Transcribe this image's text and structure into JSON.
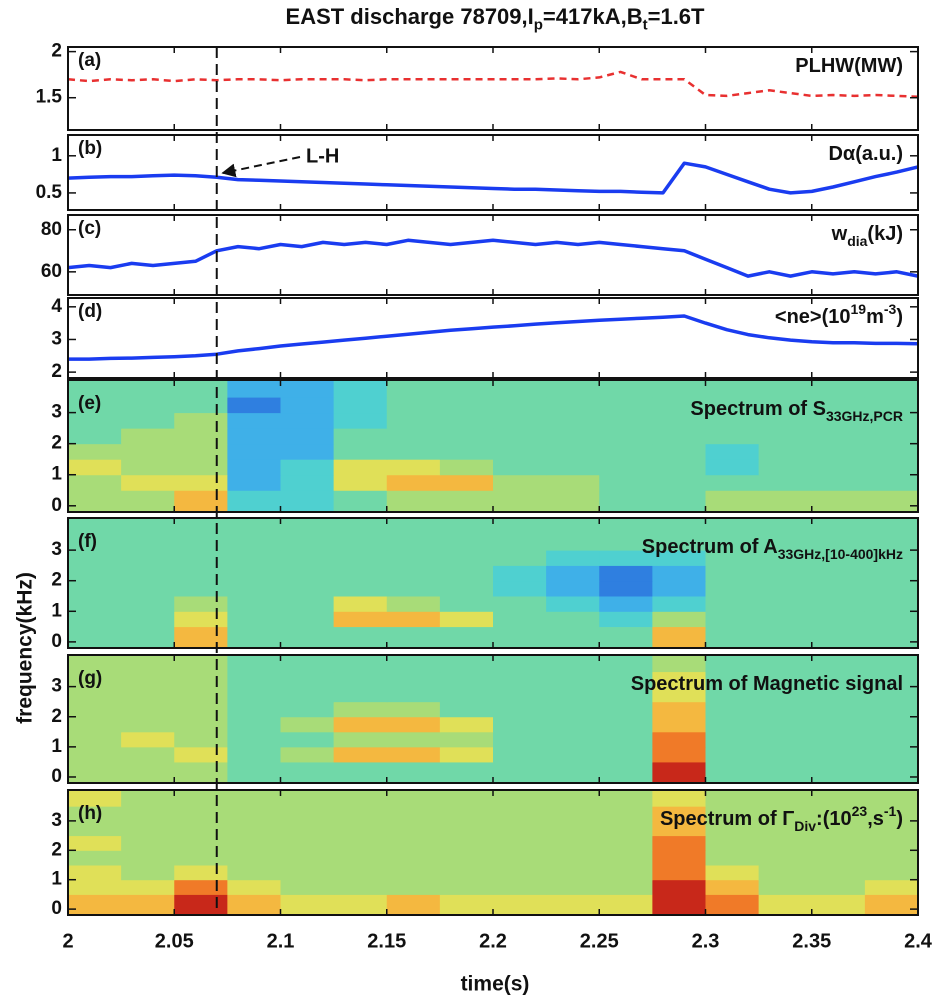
{
  "title_parts": [
    {
      "text": "EAST discharge 78709,I"
    },
    {
      "text": "p",
      "style": "sub"
    },
    {
      "text": "=417kA,B"
    },
    {
      "text": "t",
      "style": "sub"
    },
    {
      "text": "=1.6T"
    }
  ],
  "xlabel": "time(s)",
  "ylabel": "frequency(kHz)",
  "annotation": "L-H",
  "lh_time": 2.07,
  "xlim": [
    2,
    2.4
  ],
  "xticks": [
    2,
    2.05,
    2.1,
    2.15,
    2.2,
    2.25,
    2.3,
    2.35,
    2.4
  ],
  "colormap": [
    "#1f4fbf",
    "#2f7fe0",
    "#3fb0e8",
    "#4fd0d0",
    "#70d8a8",
    "#a8dc78",
    "#e0e058",
    "#f4b840",
    "#f07a28",
    "#c8281a"
  ],
  "chart_data": [
    {
      "type": "line",
      "panel_label": "(a)",
      "label_parts": [
        {
          "text": "PLHW(MW)"
        }
      ],
      "ylim": [
        1.15,
        2.05
      ],
      "yticks": [
        1.5,
        2
      ],
      "x": [
        2,
        2.01,
        2.02,
        2.03,
        2.04,
        2.05,
        2.06,
        2.07,
        2.08,
        2.09,
        2.1,
        2.11,
        2.12,
        2.13,
        2.14,
        2.15,
        2.16,
        2.17,
        2.18,
        2.19,
        2.2,
        2.21,
        2.22,
        2.23,
        2.24,
        2.25,
        2.26,
        2.27,
        2.28,
        2.29,
        2.3,
        2.31,
        2.32,
        2.33,
        2.34,
        2.35,
        2.36,
        2.37,
        2.38,
        2.39,
        2.4
      ],
      "series": [
        {
          "color": "#e83030",
          "dash": true,
          "values": [
            1.7,
            1.68,
            1.7,
            1.69,
            1.7,
            1.68,
            1.7,
            1.69,
            1.7,
            1.7,
            1.69,
            1.7,
            1.7,
            1.7,
            1.69,
            1.7,
            1.7,
            1.7,
            1.7,
            1.7,
            1.7,
            1.7,
            1.7,
            1.71,
            1.7,
            1.72,
            1.78,
            1.7,
            1.7,
            1.7,
            1.53,
            1.52,
            1.55,
            1.58,
            1.55,
            1.52,
            1.53,
            1.52,
            1.53,
            1.52,
            1.51
          ]
        }
      ]
    },
    {
      "type": "line",
      "panel_label": "(b)",
      "label_parts": [
        {
          "text": "Dα(a.u.)"
        }
      ],
      "ylim": [
        0.27,
        1.28
      ],
      "yticks": [
        0.5,
        1
      ],
      "x": [
        2,
        2.01,
        2.02,
        2.03,
        2.04,
        2.05,
        2.06,
        2.07,
        2.08,
        2.09,
        2.1,
        2.11,
        2.12,
        2.13,
        2.14,
        2.15,
        2.16,
        2.17,
        2.18,
        2.19,
        2.2,
        2.21,
        2.22,
        2.23,
        2.24,
        2.25,
        2.26,
        2.27,
        2.28,
        2.29,
        2.3,
        2.31,
        2.32,
        2.33,
        2.34,
        2.35,
        2.36,
        2.37,
        2.38,
        2.39,
        2.4
      ],
      "series": [
        {
          "color": "#1a3cf0",
          "dash": false,
          "values": [
            0.7,
            0.71,
            0.72,
            0.72,
            0.73,
            0.74,
            0.73,
            0.71,
            0.68,
            0.67,
            0.66,
            0.65,
            0.64,
            0.63,
            0.62,
            0.61,
            0.6,
            0.59,
            0.58,
            0.57,
            0.56,
            0.55,
            0.55,
            0.54,
            0.53,
            0.52,
            0.52,
            0.51,
            0.5,
            0.9,
            0.85,
            0.75,
            0.65,
            0.55,
            0.5,
            0.52,
            0.58,
            0.65,
            0.72,
            0.78,
            0.85
          ]
        }
      ]
    },
    {
      "type": "line",
      "panel_label": "(c)",
      "label_parts": [
        {
          "text": "w"
        },
        {
          "text": "dia",
          "style": "sub"
        },
        {
          "text": "(kJ)"
        }
      ],
      "ylim": [
        49,
        87
      ],
      "yticks": [
        60,
        80
      ],
      "x": [
        2,
        2.01,
        2.02,
        2.03,
        2.04,
        2.05,
        2.06,
        2.07,
        2.08,
        2.09,
        2.1,
        2.11,
        2.12,
        2.13,
        2.14,
        2.15,
        2.16,
        2.17,
        2.18,
        2.19,
        2.2,
        2.21,
        2.22,
        2.23,
        2.24,
        2.25,
        2.26,
        2.27,
        2.28,
        2.29,
        2.3,
        2.31,
        2.32,
        2.33,
        2.34,
        2.35,
        2.36,
        2.37,
        2.38,
        2.39,
        2.4
      ],
      "series": [
        {
          "color": "#1a3cf0",
          "dash": false,
          "values": [
            62,
            63,
            62,
            64,
            63,
            64,
            65,
            70,
            72,
            71,
            73,
            72,
            74,
            73,
            74,
            73,
            75,
            74,
            73,
            74,
            75,
            74,
            73,
            74,
            73,
            74,
            73,
            72,
            71,
            70,
            66,
            62,
            58,
            60,
            58,
            60,
            59,
            60,
            59,
            60,
            58
          ]
        }
      ]
    },
    {
      "type": "line",
      "panel_label": "(d)",
      "label_parts": [
        {
          "text": "<ne>(10"
        },
        {
          "text": "19",
          "style": "sup"
        },
        {
          "text": "m"
        },
        {
          "text": "-3",
          "style": "sup"
        },
        {
          "text": ")"
        }
      ],
      "ylim": [
        1.82,
        4.27
      ],
      "yticks": [
        2,
        3,
        4
      ],
      "x": [
        2,
        2.01,
        2.02,
        2.03,
        2.04,
        2.05,
        2.06,
        2.07,
        2.08,
        2.09,
        2.1,
        2.11,
        2.12,
        2.13,
        2.14,
        2.15,
        2.16,
        2.17,
        2.18,
        2.19,
        2.2,
        2.21,
        2.22,
        2.23,
        2.24,
        2.25,
        2.26,
        2.27,
        2.28,
        2.29,
        2.3,
        2.31,
        2.32,
        2.33,
        2.34,
        2.35,
        2.36,
        2.37,
        2.38,
        2.39,
        2.4
      ],
      "series": [
        {
          "color": "#1a3cf0",
          "dash": false,
          "values": [
            2.4,
            2.4,
            2.42,
            2.43,
            2.45,
            2.47,
            2.5,
            2.55,
            2.65,
            2.72,
            2.8,
            2.86,
            2.92,
            2.98,
            3.04,
            3.1,
            3.16,
            3.22,
            3.28,
            3.33,
            3.38,
            3.42,
            3.47,
            3.51,
            3.55,
            3.59,
            3.62,
            3.65,
            3.68,
            3.72,
            3.5,
            3.3,
            3.15,
            3.05,
            2.98,
            2.93,
            2.9,
            2.9,
            2.88,
            2.88,
            2.87
          ]
        }
      ]
    },
    {
      "type": "heatmap",
      "panel_label": "(e)",
      "label_parts": [
        {
          "text": "Spectrum of S"
        },
        {
          "text": "33GHz,PCR",
          "style": "sub"
        }
      ],
      "ylim": [
        -0.2,
        4.05
      ],
      "yticks": [
        0,
        1,
        2,
        3
      ],
      "x_edges": [
        2,
        2.025,
        2.05,
        2.075,
        2.1,
        2.125,
        2.15,
        2.175,
        2.2,
        2.225,
        2.25,
        2.275,
        2.3,
        2.325,
        2.35,
        2.375,
        2.4
      ],
      "y_edges": [
        -0.2,
        0.5,
        1,
        1.5,
        2,
        2.5,
        3,
        3.5,
        4.05
      ],
      "z": [
        [
          5,
          5,
          7,
          3,
          3,
          4,
          5,
          5,
          5,
          5,
          4,
          4,
          5,
          5,
          5,
          5
        ],
        [
          5,
          6,
          6,
          2,
          3,
          6,
          7,
          7,
          5,
          5,
          4,
          4,
          4,
          4,
          4,
          4
        ],
        [
          6,
          5,
          5,
          2,
          3,
          6,
          6,
          5,
          4,
          4,
          4,
          4,
          3,
          4,
          4,
          4
        ],
        [
          5,
          5,
          5,
          2,
          2,
          4,
          4,
          4,
          4,
          4,
          4,
          4,
          3,
          4,
          4,
          4
        ],
        [
          4,
          5,
          5,
          2,
          2,
          4,
          4,
          4,
          4,
          4,
          4,
          4,
          4,
          4,
          4,
          4
        ],
        [
          4,
          4,
          5,
          2,
          2,
          3,
          4,
          4,
          4,
          4,
          4,
          4,
          4,
          4,
          4,
          4
        ],
        [
          4,
          4,
          4,
          1,
          2,
          3,
          4,
          4,
          4,
          4,
          4,
          4,
          4,
          4,
          4,
          4
        ],
        [
          4,
          4,
          4,
          2,
          2,
          3,
          4,
          4,
          4,
          4,
          4,
          4,
          4,
          4,
          4,
          4
        ]
      ]
    },
    {
      "type": "heatmap",
      "panel_label": "(f)",
      "label_parts": [
        {
          "text": "Spectrum of A"
        },
        {
          "text": "33GHz,[10-400]kHz",
          "style": "sub"
        }
      ],
      "ylim": [
        -0.2,
        4.05
      ],
      "yticks": [
        0,
        1,
        2,
        3
      ],
      "x_edges": [
        2,
        2.025,
        2.05,
        2.075,
        2.1,
        2.125,
        2.15,
        2.175,
        2.2,
        2.225,
        2.25,
        2.275,
        2.3,
        2.325,
        2.35,
        2.375,
        2.4
      ],
      "y_edges": [
        -0.2,
        0.5,
        1,
        1.5,
        2,
        2.5,
        3,
        3.5,
        4.05
      ],
      "z": [
        [
          4,
          4,
          7,
          4,
          4,
          4,
          4,
          4,
          4,
          4,
          4,
          7,
          4,
          4,
          4,
          4
        ],
        [
          4,
          4,
          6,
          4,
          4,
          7,
          7,
          6,
          4,
          4,
          3,
          5,
          4,
          4,
          4,
          4
        ],
        [
          4,
          4,
          5,
          4,
          4,
          6,
          5,
          4,
          4,
          3,
          2,
          3,
          4,
          4,
          4,
          4
        ],
        [
          4,
          4,
          4,
          4,
          4,
          4,
          4,
          4,
          3,
          2,
          1,
          2,
          4,
          4,
          4,
          4
        ],
        [
          4,
          4,
          4,
          4,
          4,
          4,
          4,
          4,
          3,
          2,
          1,
          2,
          4,
          4,
          4,
          4
        ],
        [
          4,
          4,
          4,
          4,
          4,
          4,
          4,
          4,
          4,
          3,
          3,
          3,
          4,
          4,
          4,
          4
        ],
        [
          4,
          4,
          4,
          4,
          4,
          4,
          4,
          4,
          4,
          4,
          4,
          4,
          4,
          4,
          4,
          4
        ],
        [
          4,
          4,
          4,
          4,
          4,
          4,
          4,
          4,
          4,
          4,
          4,
          4,
          4,
          4,
          4,
          4
        ]
      ]
    },
    {
      "type": "heatmap",
      "panel_label": "(g)",
      "label_parts": [
        {
          "text": "Spectrum of Magnetic signal"
        }
      ],
      "ylim": [
        -0.2,
        4.05
      ],
      "yticks": [
        0,
        1,
        2,
        3
      ],
      "x_edges": [
        2,
        2.025,
        2.05,
        2.075,
        2.1,
        2.125,
        2.15,
        2.175,
        2.2,
        2.225,
        2.25,
        2.275,
        2.3,
        2.325,
        2.35,
        2.375,
        2.4
      ],
      "y_edges": [
        -0.2,
        0.5,
        1,
        1.5,
        2,
        2.5,
        3,
        3.5,
        4.05
      ],
      "z": [
        [
          5,
          5,
          5,
          4,
          4,
          4,
          4,
          4,
          4,
          4,
          4,
          9,
          4,
          4,
          4,
          4
        ],
        [
          5,
          5,
          6,
          4,
          5,
          7,
          7,
          6,
          4,
          4,
          4,
          8,
          4,
          4,
          4,
          4
        ],
        [
          5,
          6,
          5,
          4,
          4,
          5,
          5,
          5,
          4,
          4,
          4,
          8,
          4,
          4,
          4,
          4
        ],
        [
          5,
          5,
          5,
          4,
          5,
          7,
          7,
          6,
          4,
          4,
          4,
          7,
          4,
          4,
          4,
          4
        ],
        [
          5,
          5,
          5,
          4,
          4,
          5,
          5,
          4,
          4,
          4,
          4,
          7,
          4,
          4,
          4,
          4
        ],
        [
          5,
          5,
          5,
          4,
          4,
          4,
          4,
          4,
          4,
          4,
          4,
          6,
          4,
          4,
          4,
          4
        ],
        [
          5,
          5,
          5,
          4,
          4,
          4,
          4,
          4,
          4,
          4,
          4,
          6,
          4,
          4,
          4,
          4
        ],
        [
          5,
          5,
          5,
          4,
          4,
          4,
          4,
          4,
          4,
          4,
          4,
          5,
          4,
          4,
          4,
          4
        ]
      ]
    },
    {
      "type": "heatmap",
      "panel_label": "(h)",
      "label_parts": [
        {
          "text": "Spectrum of  Γ"
        },
        {
          "text": "Div",
          "style": "sub"
        },
        {
          "text": ":(10"
        },
        {
          "text": "23",
          "style": "sup"
        },
        {
          "text": ",s"
        },
        {
          "text": "-1",
          "style": "sup"
        },
        {
          "text": ")"
        }
      ],
      "ylim": [
        -0.2,
        4.05
      ],
      "yticks": [
        0,
        1,
        2,
        3
      ],
      "x_edges": [
        2,
        2.025,
        2.05,
        2.075,
        2.1,
        2.125,
        2.15,
        2.175,
        2.2,
        2.225,
        2.25,
        2.275,
        2.3,
        2.325,
        2.35,
        2.375,
        2.4
      ],
      "y_edges": [
        -0.2,
        0.5,
        1,
        1.5,
        2,
        2.5,
        3,
        3.5,
        4.05
      ],
      "z": [
        [
          7,
          7,
          9,
          7,
          6,
          6,
          7,
          6,
          6,
          6,
          6,
          9,
          8,
          6,
          6,
          7
        ],
        [
          6,
          6,
          8,
          6,
          5,
          5,
          5,
          5,
          5,
          5,
          5,
          9,
          7,
          5,
          5,
          6
        ],
        [
          6,
          5,
          6,
          5,
          5,
          5,
          5,
          5,
          5,
          5,
          5,
          8,
          6,
          5,
          5,
          5
        ],
        [
          5,
          5,
          5,
          5,
          5,
          5,
          5,
          5,
          5,
          5,
          5,
          8,
          5,
          5,
          5,
          5
        ],
        [
          6,
          5,
          5,
          5,
          5,
          5,
          5,
          5,
          5,
          5,
          5,
          8,
          5,
          5,
          5,
          5
        ],
        [
          5,
          5,
          5,
          5,
          5,
          5,
          5,
          5,
          5,
          5,
          5,
          7,
          5,
          5,
          5,
          5
        ],
        [
          5,
          5,
          5,
          5,
          5,
          5,
          5,
          5,
          5,
          5,
          5,
          7,
          5,
          5,
          5,
          5
        ],
        [
          6,
          5,
          5,
          5,
          5,
          5,
          5,
          5,
          5,
          5,
          5,
          6,
          5,
          5,
          5,
          5
        ]
      ]
    }
  ]
}
